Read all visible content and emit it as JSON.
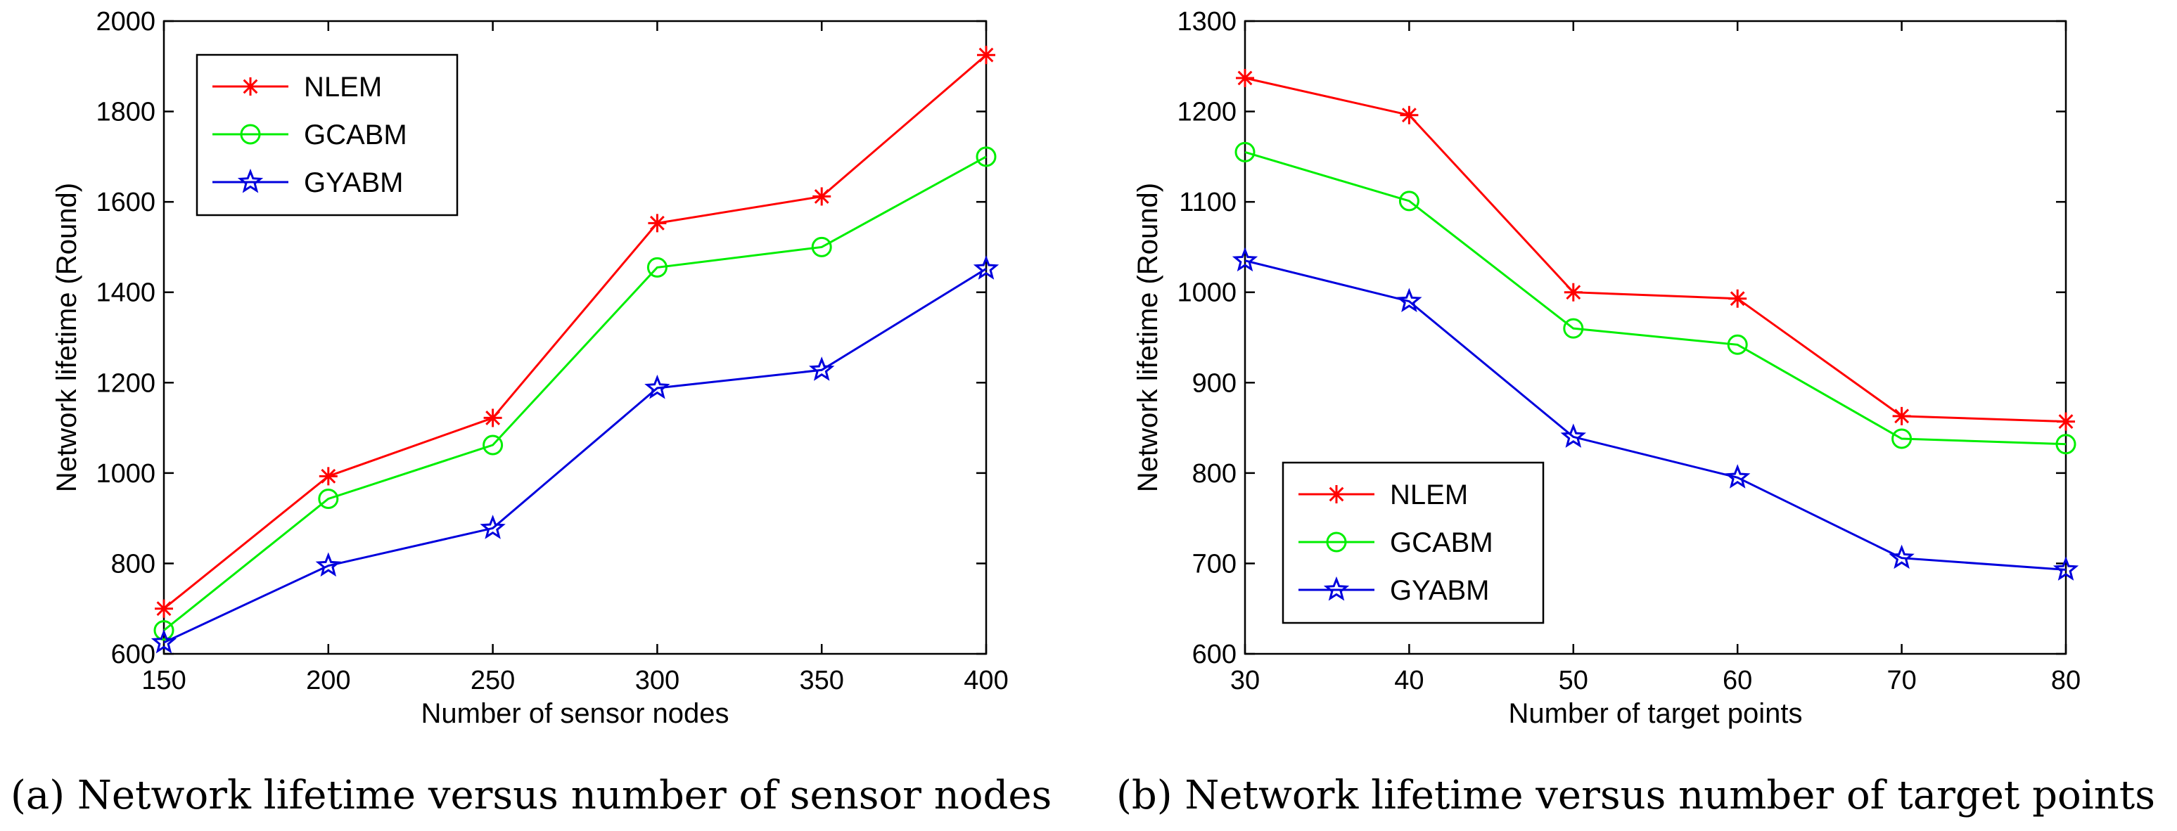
{
  "colors": {
    "nlem": "#ff0000",
    "gcabm": "#00ee00",
    "gyabm": "#0000dd"
  },
  "chart_data": [
    {
      "type": "line",
      "title": "",
      "caption": "(a) Network lifetime versus number of sensor nodes",
      "xlabel": "Number of sensor nodes",
      "ylabel": "Network lifetime (Round)",
      "xlim": [
        150,
        400
      ],
      "ylim": [
        600,
        2000
      ],
      "xticks": [
        150,
        200,
        250,
        300,
        350,
        400
      ],
      "yticks": [
        600,
        800,
        1000,
        1200,
        1400,
        1600,
        1800,
        2000
      ],
      "x": [
        150,
        200,
        250,
        300,
        350,
        400
      ],
      "legend_position": "top-left",
      "grid": false,
      "series": [
        {
          "name": "NLEM",
          "marker": "asterisk",
          "color_key": "nlem",
          "values": [
            700,
            993,
            1122,
            1553,
            1612,
            1925
          ]
        },
        {
          "name": "GCABM",
          "marker": "circle",
          "color_key": "gcabm",
          "values": [
            652,
            943,
            1062,
            1455,
            1500,
            1700
          ]
        },
        {
          "name": "GYABM",
          "marker": "star",
          "color_key": "gyabm",
          "values": [
            625,
            795,
            878,
            1188,
            1228,
            1452
          ]
        }
      ]
    },
    {
      "type": "line",
      "title": "",
      "caption": "(b) Network lifetime versus number of target points",
      "xlabel": "Number of target points",
      "ylabel": "Network lifetime (Round)",
      "xlim": [
        30,
        80
      ],
      "ylim": [
        600,
        1300
      ],
      "xticks": [
        30,
        40,
        50,
        60,
        70,
        80
      ],
      "yticks": [
        600,
        700,
        800,
        900,
        1000,
        1100,
        1200,
        1300
      ],
      "x": [
        30,
        40,
        50,
        60,
        70,
        80
      ],
      "legend_position": "bottom-left",
      "grid": false,
      "series": [
        {
          "name": "NLEM",
          "marker": "asterisk",
          "color_key": "nlem",
          "values": [
            1237,
            1196,
            1000,
            993,
            863,
            857
          ]
        },
        {
          "name": "GCABM",
          "marker": "circle",
          "color_key": "gcabm",
          "values": [
            1155,
            1101,
            960,
            942,
            838,
            832
          ]
        },
        {
          "name": "GYABM",
          "marker": "star",
          "color_key": "gyabm",
          "values": [
            1035,
            990,
            840,
            795,
            706,
            693
          ]
        }
      ]
    }
  ]
}
